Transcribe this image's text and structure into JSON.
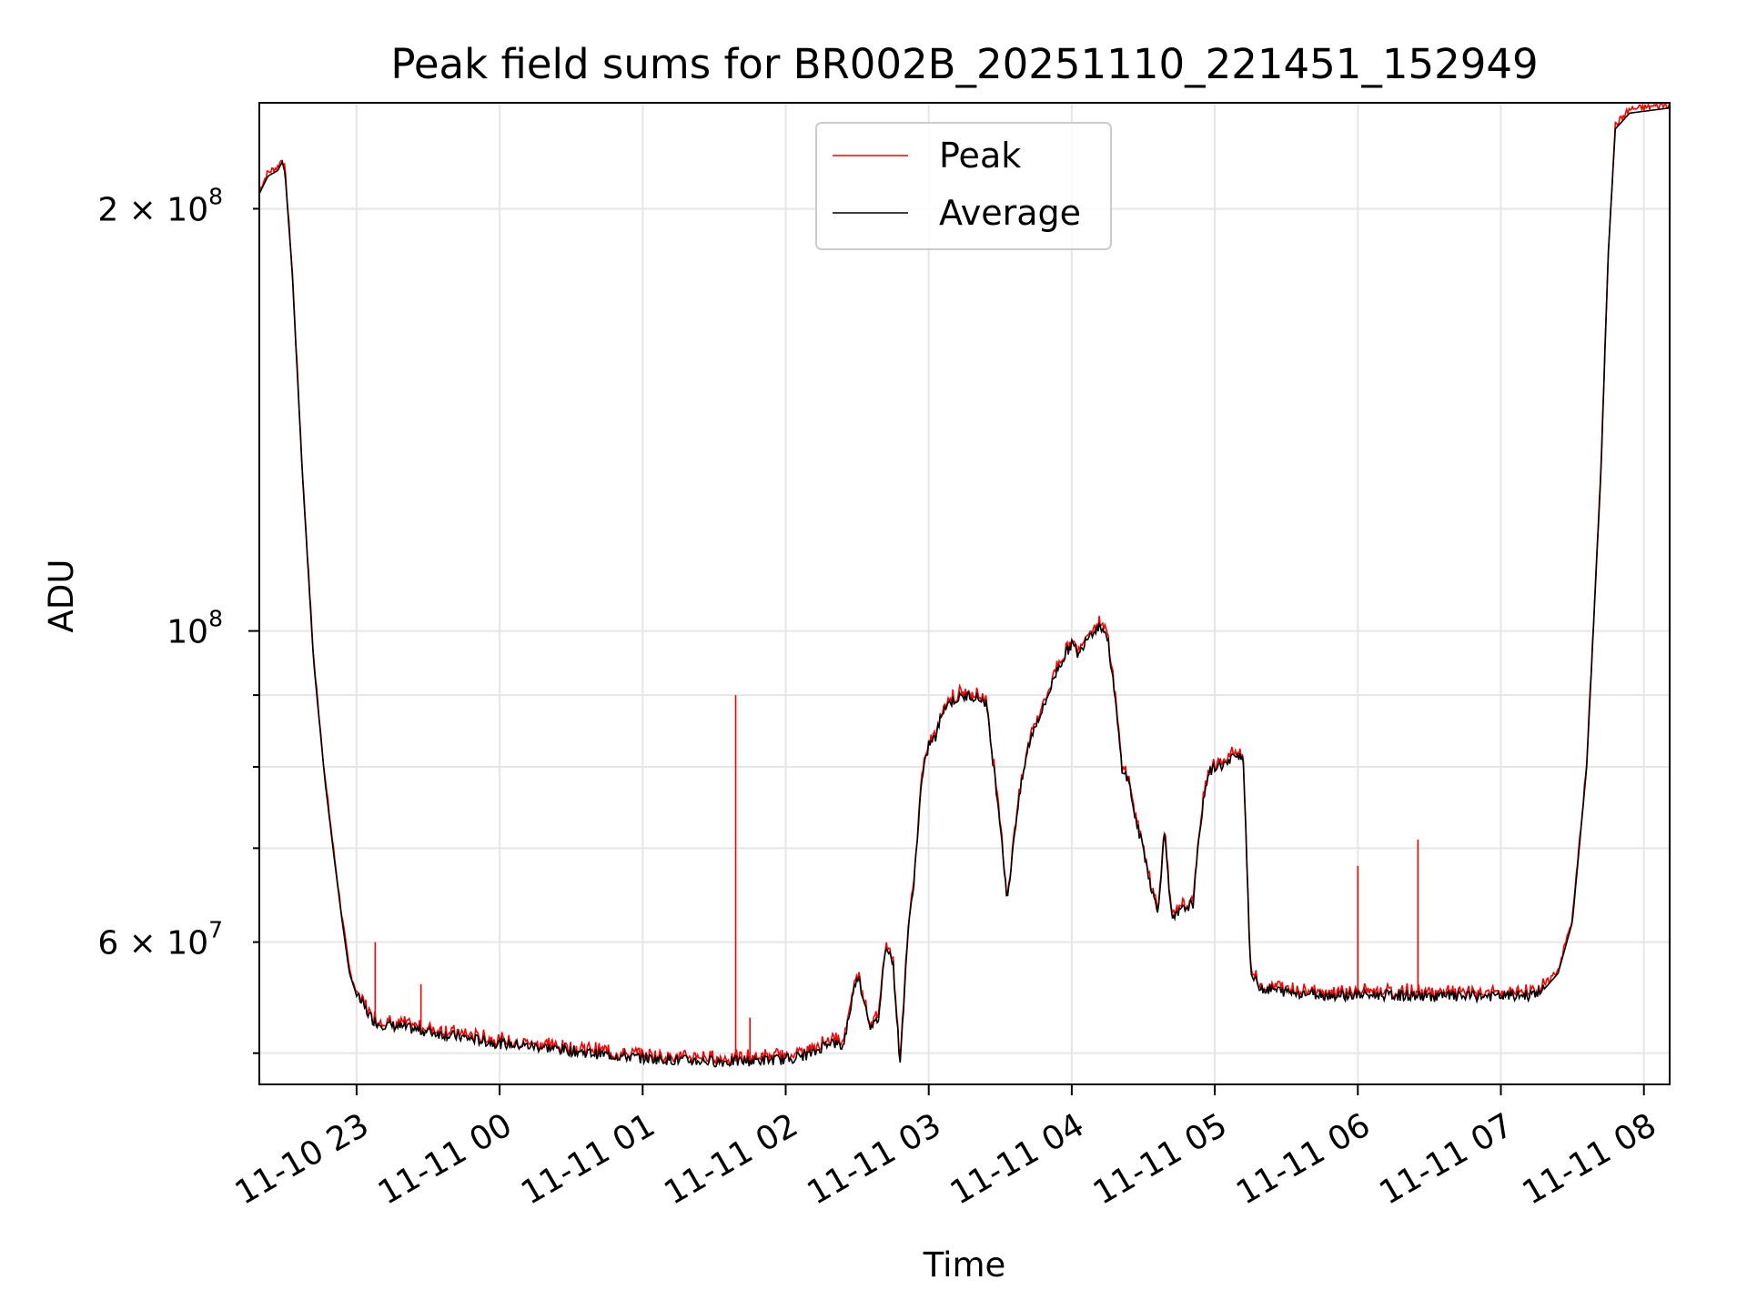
{
  "chart_data": {
    "type": "line",
    "title": "Peak field sums for BR002B_20251110_221451_152949",
    "xlabel": "Time",
    "ylabel": "ADU",
    "yscale": "log",
    "ylim": [
      47500000,
      238000000
    ],
    "xlim": [
      -0.68,
      9.18
    ],
    "grid": true,
    "legend_location": "upper center",
    "x_unit": "hours since 2025-11-10 23:00",
    "x_ticks": [
      {
        "value": 0,
        "label": "11-10 23"
      },
      {
        "value": 1,
        "label": "11-11 00"
      },
      {
        "value": 2,
        "label": "11-11 01"
      },
      {
        "value": 3,
        "label": "11-11 02"
      },
      {
        "value": 4,
        "label": "11-11 03"
      },
      {
        "value": 5,
        "label": "11-11 04"
      },
      {
        "value": 6,
        "label": "11-11 05"
      },
      {
        "value": 7,
        "label": "11-11 06"
      },
      {
        "value": 8,
        "label": "11-11 07"
      },
      {
        "value": 9,
        "label": "11-11 08"
      }
    ],
    "y_major_ticks": [
      {
        "value": 100000000,
        "label_base": "10",
        "label_exp": "8"
      }
    ],
    "y_minor_ticks": [
      {
        "value": 60000000,
        "label_base": "6 × 10",
        "label_exp": "7"
      },
      {
        "value": 200000000,
        "label_base": "2 × 10",
        "label_exp": "8"
      }
    ],
    "y_minor_unlabeled": [
      50000000,
      70000000,
      80000000,
      90000000
    ],
    "series": [
      {
        "name": "Average",
        "color": "#000000",
        "x": [
          -0.68,
          -0.62,
          -0.55,
          -0.52,
          -0.5,
          -0.45,
          -0.38,
          -0.3,
          -0.22,
          -0.15,
          -0.1,
          -0.05,
          0,
          0.05,
          0.1,
          0.15,
          0.3,
          0.5,
          0.8,
          1.0,
          1.3,
          1.5,
          1.8,
          2.0,
          2.3,
          2.6,
          2.8,
          3.0,
          3.2,
          3.3,
          3.4,
          3.5,
          3.6,
          3.65,
          3.7,
          3.75,
          3.8,
          3.85,
          3.9,
          3.95,
          4.0,
          4.05,
          4.1,
          4.15,
          4.2,
          4.3,
          4.4,
          4.5,
          4.55,
          4.6,
          4.65,
          4.7,
          4.75,
          4.8,
          4.85,
          4.9,
          5.0,
          5.05,
          5.1,
          5.15,
          5.2,
          5.25,
          5.3,
          5.35,
          5.4,
          5.45,
          5.5,
          5.55,
          5.6,
          5.65,
          5.7,
          5.75,
          5.8,
          5.85,
          5.9,
          5.95,
          6.0,
          6.1,
          6.15,
          6.2,
          6.25,
          6.3,
          6.35,
          6.4,
          6.45,
          6.5,
          6.6,
          6.8,
          7.0,
          7.2,
          7.5,
          7.8,
          8.0,
          8.2,
          8.3,
          8.4,
          8.5,
          8.6,
          8.7,
          8.75,
          8.8,
          8.9,
          9.18
        ],
        "values": [
          205000000,
          211000000,
          213000000,
          216000000,
          212000000,
          180000000,
          130000000,
          95000000,
          78000000,
          68000000,
          62000000,
          57000000,
          55000000,
          54000000,
          53000000,
          52500000,
          52200000,
          51800000,
          51200000,
          50800000,
          50500000,
          50200000,
          49800000,
          49600000,
          49400000,
          49300000,
          49400000,
          49500000,
          50000000,
          51000000,
          50500000,
          57000000,
          52000000,
          53000000,
          60000000,
          58000000,
          49000000,
          60000000,
          67000000,
          78000000,
          83000000,
          84000000,
          88000000,
          89000000,
          89500000,
          90000000,
          89000000,
          73000000,
          64000000,
          72000000,
          78000000,
          83000000,
          86000000,
          88000000,
          91000000,
          94000000,
          98000000,
          96000000,
          99000000,
          100000000,
          101000000,
          99000000,
          90000000,
          80000000,
          78000000,
          73000000,
          70000000,
          66000000,
          63000000,
          72000000,
          62000000,
          63000000,
          63500000,
          64000000,
          73000000,
          79000000,
          80000000,
          80500000,
          82000000,
          81000000,
          57000000,
          56000000,
          55500000,
          55500000,
          55400000,
          55300000,
          55200000,
          55000000,
          55000000,
          55000000,
          54900000,
          54900000,
          54900000,
          55000000,
          55500000,
          57000000,
          62000000,
          80000000,
          130000000,
          185000000,
          228000000,
          234000000,
          236000000
        ]
      },
      {
        "name": "Peak",
        "color": "#ff0000",
        "spikes": [
          {
            "x": 0.13,
            "value": 60000000
          },
          {
            "x": 0.45,
            "value": 56000000
          },
          {
            "x": 2.65,
            "value": 90000000
          },
          {
            "x": 2.75,
            "value": 53000000
          },
          {
            "x": 3.75,
            "value": 58000000
          },
          {
            "x": 7.0,
            "value": 68000000
          },
          {
            "x": 7.42,
            "value": 71000000
          }
        ]
      }
    ]
  }
}
